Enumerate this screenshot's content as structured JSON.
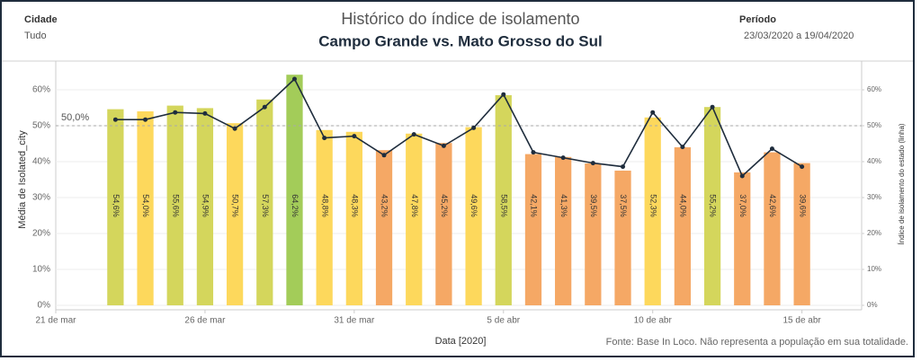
{
  "header": {
    "city_label": "Cidade",
    "city_value": "Tudo",
    "period_label": "Período",
    "period_value": "23/03/2020 a 19/04/2020"
  },
  "chart_data": {
    "type": "bar",
    "title": "Histórico do índice de isolamento",
    "subtitle": "Campo Grande vs. Mato Grosso do Sul",
    "x_label": "Data [2020]",
    "y_label": "Média de Isolated_city",
    "y2_label": "Índice de isolamento do estado (linha)",
    "source": "Fonte: Base In Loco. Não representa a população em sua totalidade.",
    "x": [
      "2020-03-23",
      "2020-03-24",
      "2020-03-25",
      "2020-03-26",
      "2020-03-27",
      "2020-03-28",
      "2020-03-29",
      "2020-03-30",
      "2020-03-31",
      "2020-04-01",
      "2020-04-02",
      "2020-04-03",
      "2020-04-04",
      "2020-04-05",
      "2020-04-06",
      "2020-04-07",
      "2020-04-08",
      "2020-04-09",
      "2020-04-10",
      "2020-04-11",
      "2020-04-12",
      "2020-04-13",
      "2020-04-14",
      "2020-04-15"
    ],
    "xlim": [
      "2020-03-21",
      "2020-04-17"
    ],
    "xticks": [
      {
        "value": "2020-03-21",
        "label": "21 de mar"
      },
      {
        "value": "2020-03-26",
        "label": "26 de mar"
      },
      {
        "value": "2020-03-31",
        "label": "31 de mar"
      },
      {
        "value": "2020-04-05",
        "label": "5 de abr"
      },
      {
        "value": "2020-04-10",
        "label": "10 de abr"
      },
      {
        "value": "2020-04-15",
        "label": "15 de abr"
      }
    ],
    "series": [
      {
        "name": "Média de Isolated_city",
        "type": "bar",
        "values": [
          54.6,
          54.0,
          55.6,
          54.9,
          50.7,
          57.3,
          64.2,
          48.8,
          48.3,
          43.2,
          47.8,
          45.2,
          49.6,
          58.5,
          42.1,
          41.3,
          39.5,
          37.5,
          52.3,
          44.0,
          55.2,
          37.0,
          42.6,
          39.6
        ],
        "value_labels": [
          "54,6%",
          "54,0%",
          "55,6%",
          "54,9%",
          "50,7%",
          "57,3%",
          "64,2%",
          "48,8%",
          "48,3%",
          "43,2%",
          "47,8%",
          "45,2%",
          "49,6%",
          "58,5%",
          "42,1%",
          "41,3%",
          "39,5%",
          "37,5%",
          "52,3%",
          "44,0%",
          "55,2%",
          "37,0%",
          "42,6%",
          "39,6%"
        ],
        "colors": [
          "#d4d65c",
          "#fdd85c",
          "#d4d65c",
          "#d4d65c",
          "#fdd85c",
          "#d4d65c",
          "#a3cc59",
          "#fdd85c",
          "#fdd85c",
          "#f5a865",
          "#fdd85c",
          "#f5a865",
          "#fdd85c",
          "#d4d65c",
          "#f5a865",
          "#f5a865",
          "#f5a865",
          "#f5a865",
          "#fdd85c",
          "#f5a865",
          "#d4d65c",
          "#f5a865",
          "#f5a865",
          "#f5a865"
        ]
      },
      {
        "name": "Índice de isolamento do estado",
        "type": "line",
        "axis": "y2",
        "color": "#1f2d3d",
        "values": [
          51.7,
          51.7,
          53.7,
          53.4,
          49.2,
          55.2,
          63.0,
          46.6,
          47.1,
          41.8,
          47.6,
          44.4,
          49.4,
          58.7,
          42.6,
          41.1,
          39.6,
          38.6,
          53.7,
          44.1,
          55.2,
          36.0,
          43.6,
          38.6
        ]
      }
    ],
    "ylim": [
      0,
      68
    ],
    "yticks": [
      {
        "value": 0,
        "label": "0%"
      },
      {
        "value": 10,
        "label": "10%"
      },
      {
        "value": 20,
        "label": "20%"
      },
      {
        "value": 30,
        "label": "30%"
      },
      {
        "value": 40,
        "label": "40%"
      },
      {
        "value": 50,
        "label": "50%"
      },
      {
        "value": 60,
        "label": "60%"
      }
    ],
    "y2lim": [
      0,
      68
    ],
    "y2ticks": [
      {
        "value": 0,
        "label": "0%"
      },
      {
        "value": 10,
        "label": "10%"
      },
      {
        "value": 20,
        "label": "20%"
      },
      {
        "value": 30,
        "label": "30%"
      },
      {
        "value": 40,
        "label": "40%"
      },
      {
        "value": 50,
        "label": "50%"
      },
      {
        "value": 60,
        "label": "60%"
      }
    ],
    "reference_line": {
      "value": 50,
      "label": "50,0%"
    },
    "grid": true
  }
}
